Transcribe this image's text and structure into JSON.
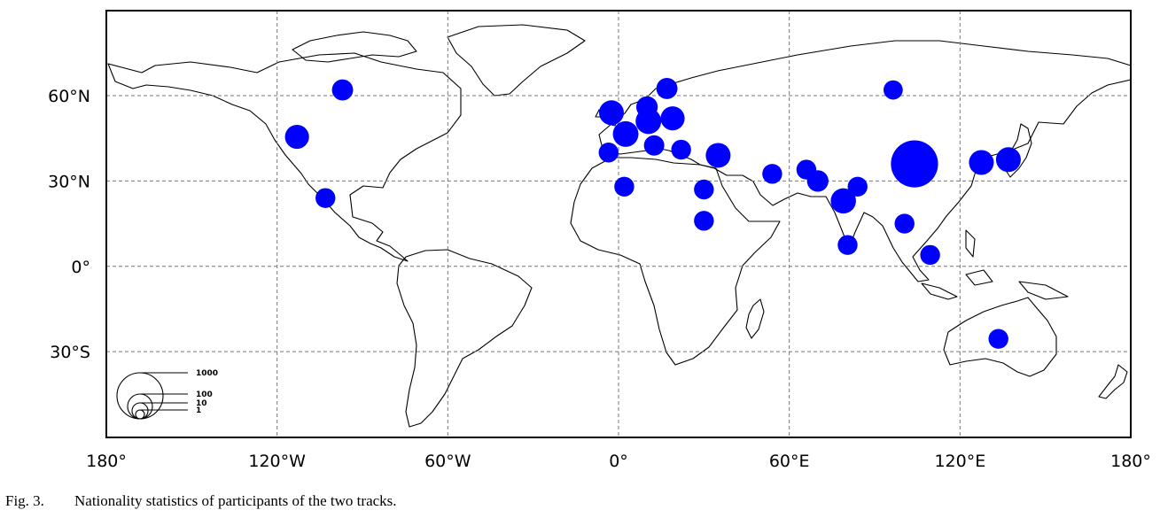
{
  "chart_data": {
    "type": "scatter",
    "description_type": "proportional symbol map",
    "projection": "equirectangular",
    "lon_range": [
      -180,
      180
    ],
    "lat_range": [
      -60,
      90
    ],
    "grid": true,
    "x_ticks": [
      {
        "value": -180,
        "label": "180°"
      },
      {
        "value": -120,
        "label": "120°W"
      },
      {
        "value": -60,
        "label": "60°W"
      },
      {
        "value": 0,
        "label": "0°"
      },
      {
        "value": 60,
        "label": "60°E"
      },
      {
        "value": 120,
        "label": "120°E"
      },
      {
        "value": 180,
        "label": "180°"
      }
    ],
    "y_ticks": [
      {
        "value": 60,
        "label": "60°N"
      },
      {
        "value": 30,
        "label": "30°N"
      },
      {
        "value": 0,
        "label": "0°"
      },
      {
        "value": -30,
        "label": "30°S"
      }
    ],
    "marker_color": "#0000ff",
    "legend": {
      "placement": "bottom-left",
      "entries": [
        {
          "label": "1000",
          "value": 1000
        },
        {
          "label": "100",
          "value": 100
        },
        {
          "label": "10",
          "value": 10
        },
        {
          "label": "1",
          "value": 1
        }
      ]
    },
    "points": [
      {
        "lon": 104,
        "lat": 36,
        "value": 1000
      },
      {
        "lon": 127.5,
        "lat": 36.5,
        "value": 140
      },
      {
        "lon": 137,
        "lat": 37.5,
        "value": 140
      },
      {
        "lon": -113,
        "lat": 45.5,
        "value": 110
      },
      {
        "lon": -97,
        "lat": 62,
        "value": 45
      },
      {
        "lon": -103,
        "lat": 24,
        "value": 30
      },
      {
        "lon": 79,
        "lat": 23,
        "value": 160
      },
      {
        "lon": 35,
        "lat": 39,
        "value": 140
      },
      {
        "lon": 2.5,
        "lat": 46.5,
        "value": 180
      },
      {
        "lon": 10.5,
        "lat": 51,
        "value": 180
      },
      {
        "lon": 19,
        "lat": 52,
        "value": 110
      },
      {
        "lon": -2.5,
        "lat": 54,
        "value": 140
      },
      {
        "lon": 10,
        "lat": 56,
        "value": 50
      },
      {
        "lon": 17,
        "lat": 62.5,
        "value": 45
      },
      {
        "lon": 12.5,
        "lat": 42.5,
        "value": 35
      },
      {
        "lon": 22,
        "lat": 41,
        "value": 30
      },
      {
        "lon": -3.5,
        "lat": 40,
        "value": 30
      },
      {
        "lon": 2,
        "lat": 28,
        "value": 30
      },
      {
        "lon": 30,
        "lat": 27,
        "value": 30
      },
      {
        "lon": 30,
        "lat": 16,
        "value": 30
      },
      {
        "lon": 54,
        "lat": 32.5,
        "value": 30
      },
      {
        "lon": 66,
        "lat": 34,
        "value": 30
      },
      {
        "lon": 70,
        "lat": 30,
        "value": 50
      },
      {
        "lon": 84,
        "lat": 28,
        "value": 30
      },
      {
        "lon": 80.5,
        "lat": 7.5,
        "value": 30
      },
      {
        "lon": 100.5,
        "lat": 15,
        "value": 30
      },
      {
        "lon": 109.5,
        "lat": 4,
        "value": 30
      },
      {
        "lon": 96.5,
        "lat": 62,
        "value": 25
      },
      {
        "lon": 133.5,
        "lat": -25.5,
        "value": 30
      }
    ]
  },
  "caption": {
    "number": "Fig. 3.",
    "text": "Nationality statistics of participants of the two tracks."
  }
}
